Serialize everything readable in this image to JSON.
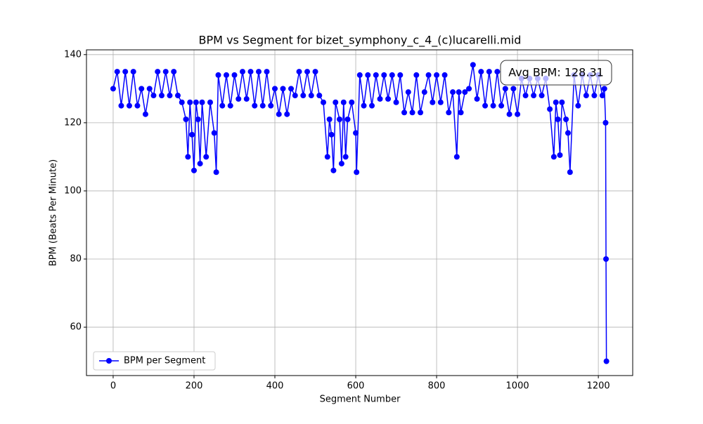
{
  "chart_data": {
    "type": "line",
    "title": "BPM vs Segment for bizet_symphony_c_4_(c)lucarelli.mid",
    "x_label": "Segment Number",
    "y_label": "BPM (Beats Per Minute)",
    "annotation": "Avg BPM: 128.31",
    "x": [
      0,
      10,
      20,
      30,
      40,
      50,
      60,
      70,
      80,
      90,
      100,
      110,
      120,
      130,
      140,
      150,
      160,
      170,
      180,
      185,
      190,
      195,
      200,
      205,
      210,
      215,
      220,
      230,
      240,
      250,
      255,
      260,
      270,
      280,
      290,
      300,
      310,
      320,
      330,
      340,
      350,
      360,
      370,
      380,
      390,
      400,
      410,
      420,
      430,
      440,
      450,
      460,
      470,
      480,
      490,
      500,
      510,
      520,
      530,
      535,
      540,
      545,
      550,
      560,
      565,
      570,
      575,
      580,
      590,
      600,
      602,
      610,
      620,
      630,
      640,
      650,
      660,
      670,
      680,
      690,
      700,
      710,
      720,
      730,
      740,
      750,
      760,
      770,
      780,
      790,
      800,
      810,
      820,
      830,
      840,
      850,
      855,
      860,
      870,
      880,
      890,
      900,
      910,
      920,
      930,
      940,
      950,
      960,
      970,
      980,
      990,
      1000,
      1010,
      1020,
      1030,
      1040,
      1050,
      1060,
      1070,
      1080,
      1090,
      1095,
      1100,
      1105,
      1110,
      1120,
      1125,
      1130,
      1140,
      1150,
      1160,
      1170,
      1180,
      1190,
      1200,
      1210,
      1215,
      1218,
      1219,
      1220
    ],
    "series": [
      {
        "name": "BPM per Segment",
        "color": "#0000ff",
        "values": [
          130,
          135,
          125,
          135,
          125,
          135,
          125,
          130,
          122.5,
          130,
          128,
          135,
          128,
          135,
          128,
          135,
          128,
          126,
          121,
          110,
          126,
          116.5,
          106,
          126,
          121,
          108,
          126,
          110,
          126,
          117,
          105.5,
          134,
          125,
          134,
          125,
          134,
          127,
          135,
          127,
          135,
          125,
          135,
          125,
          135,
          125,
          130,
          122.5,
          130,
          122.5,
          130,
          128,
          135,
          128,
          135,
          128,
          135,
          128,
          126,
          110,
          121,
          116.5,
          106,
          126,
          121,
          108,
          126,
          110,
          121,
          126,
          117,
          105.5,
          134,
          125,
          134,
          125,
          134,
          127,
          134,
          127,
          134,
          126,
          134,
          123,
          129,
          123,
          134,
          123,
          129,
          134,
          126,
          134,
          126,
          134,
          123,
          129,
          110,
          129,
          123,
          129,
          130,
          137,
          127,
          135,
          125,
          135,
          125,
          135,
          125,
          130,
          122.5,
          130,
          122.5,
          133,
          128,
          133,
          128,
          133,
          128,
          133,
          124,
          110,
          126,
          121,
          110.5,
          126,
          121,
          117,
          105.5,
          134,
          125,
          134,
          128,
          134,
          128,
          134,
          128,
          130,
          120,
          80,
          50
        ]
      }
    ],
    "xlim": [
      -66,
      1285
    ],
    "ylim": [
      45.8,
      141.4
    ],
    "xticks": [
      0,
      200,
      400,
      600,
      800,
      1000,
      1200
    ],
    "yticks": [
      60,
      80,
      100,
      120,
      140
    ],
    "grid": true,
    "legend": "lower left"
  }
}
